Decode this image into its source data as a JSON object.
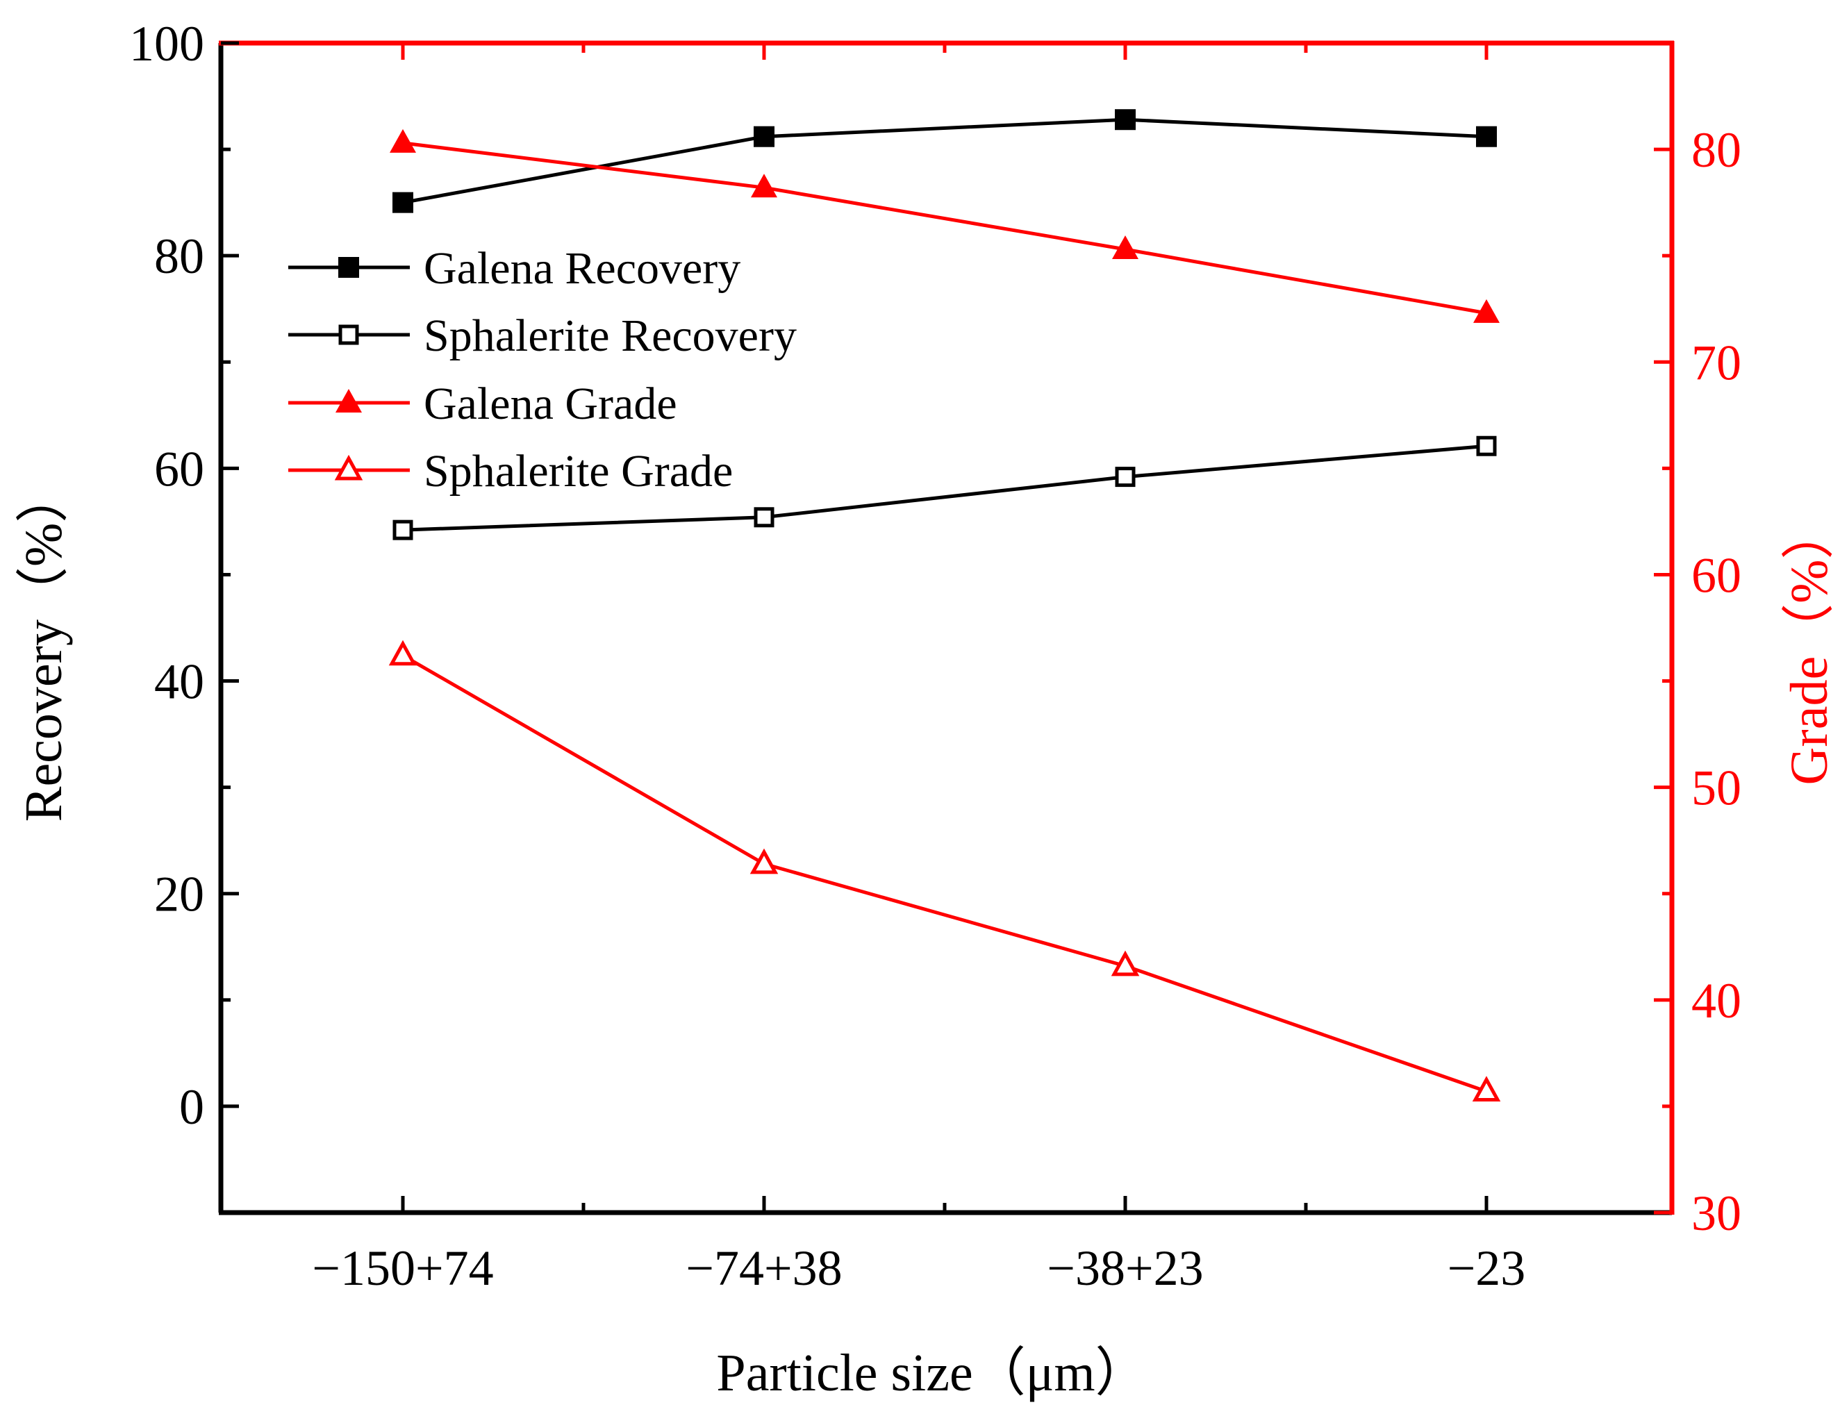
{
  "chart_data": {
    "type": "line",
    "categories": [
      "−150+74",
      "−74+38",
      "−38+23",
      "−23"
    ],
    "xlabel": "Particle size（μm）",
    "ylabel": "Recovery（%）",
    "y2label": "Grade（%）",
    "ylim": [
      -10,
      100
    ],
    "y2lim": [
      30,
      85
    ],
    "yticks": [
      "0",
      "20",
      "40",
      "60",
      "80",
      "100"
    ],
    "y2ticks": [
      "30",
      "40",
      "50",
      "60",
      "70",
      "80"
    ],
    "legend_position": "upper-left",
    "series": [
      {
        "name": "Galena Recovery",
        "axis": "left",
        "color": "#000000",
        "marker": "square-filled",
        "values": [
          85.0,
          91.2,
          92.8,
          91.2
        ]
      },
      {
        "name": "Sphalerite Recovery",
        "axis": "left",
        "color": "#000000",
        "marker": "square-open",
        "values": [
          54.2,
          55.4,
          59.2,
          62.1
        ]
      },
      {
        "name": "Galena Grade",
        "axis": "right",
        "color": "#ff0000",
        "marker": "triangle-filled",
        "values": [
          80.3,
          78.2,
          75.3,
          72.3
        ]
      },
      {
        "name": "Sphalerite Grade",
        "axis": "right",
        "color": "#ff0000",
        "marker": "triangle-open",
        "values": [
          56.2,
          46.4,
          41.6,
          35.7
        ]
      }
    ]
  }
}
